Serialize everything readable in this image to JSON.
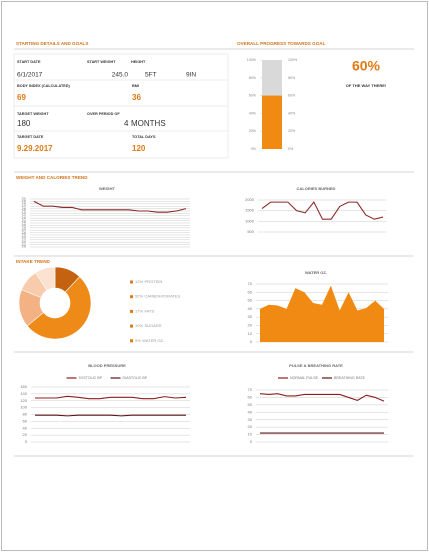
{
  "details": {
    "title": "STARTING DETAILS AND GOALS",
    "fields": [
      {
        "label": "START DATE",
        "value": "6/1/2017"
      },
      {
        "label": "START WEIGHT",
        "value": "245.0"
      },
      {
        "label": "HEIGHT",
        "value": [
          "5FT",
          "9IN"
        ]
      },
      {
        "label": "BODY INDEX (CALCULATED)",
        "value": "69"
      },
      {
        "label": "BMI",
        "value": "36"
      },
      {
        "label": "TARGET WEIGHT",
        "value": "180"
      },
      {
        "label": "OVER PERIOD OF",
        "value": [
          "4",
          "MONTHS"
        ]
      },
      {
        "label": "TARGET DATE",
        "value": "9.29.2017"
      },
      {
        "label": "TOTAL DAYS",
        "value": "120"
      }
    ]
  },
  "sections": [
    "WEIGHT AND CALORIES TREND",
    "INTAKE TREND"
  ],
  "chart_data": [
    {
      "type": "bar",
      "title": "OVERALL PROGRESS TOWARDS GOAL",
      "values": [
        60
      ],
      "value_labels": [
        "60%"
      ],
      "annotation": "OF THE WAY THERE!",
      "color": "#f08a12",
      "ylim": [
        0,
        100
      ],
      "yticks": [
        {
          "value": 0,
          "label": "0%"
        },
        {
          "value": 20,
          "label": "20%"
        },
        {
          "value": 40,
          "label": "40%"
        },
        {
          "value": 60,
          "label": "60%"
        },
        {
          "value": 80,
          "label": "80%"
        },
        {
          "value": 100,
          "label": "100%"
        }
      ]
    },
    {
      "type": "line",
      "title": "WEIGHT",
      "ylim": [
        230,
        250
      ],
      "yticks": [
        230,
        231,
        232,
        233,
        234,
        235,
        236,
        237,
        238,
        239,
        240,
        241,
        242,
        243,
        244,
        245,
        246,
        247,
        248,
        249,
        250
      ],
      "grid": true,
      "series": [
        {
          "name": null,
          "color": "#8b2a2a",
          "values": [
            249,
            247,
            247,
            246.5,
            246.5,
            245.5,
            245.5,
            245.5,
            245.5,
            245.5,
            245.5,
            245,
            245,
            244.5,
            244.5,
            245,
            246
          ]
        }
      ]
    },
    {
      "type": "line",
      "title": "CALORIES BURNED",
      "ylim": [
        500,
        2000
      ],
      "yticks": [
        500,
        1000,
        1500,
        2000
      ],
      "grid": true,
      "series": [
        {
          "name": null,
          "color": "#8b2a2a",
          "values": [
            1600,
            1900,
            1900,
            1900,
            1500,
            1400,
            1900,
            1100,
            1100,
            1700,
            1900,
            1900,
            1300,
            1100,
            1200
          ]
        }
      ]
    },
    {
      "type": "pie",
      "categories": [
        "PROTEIN",
        "CARBOHYDRATES",
        "FATS",
        "SUGARS",
        "WATER OZ."
      ],
      "values": [
        12,
        52,
        17,
        10,
        9
      ],
      "value_labels": [
        "12%",
        "52%",
        "17%",
        "10%",
        "9%"
      ],
      "colors": [
        "#c5620f",
        "#ee8a17",
        "#f4b183",
        "#f8cbad",
        "#fbe2d0"
      ]
    },
    {
      "type": "area",
      "title": "WATER OZ.",
      "ylim": [
        0,
        70
      ],
      "yticks": [
        0,
        10,
        20,
        30,
        40,
        50,
        60,
        70
      ],
      "grid": true,
      "series": [
        {
          "name": null,
          "color": "#f08a12",
          "values": [
            40,
            45,
            44,
            40,
            65,
            60,
            47,
            45,
            68,
            38,
            60,
            38,
            41,
            50,
            40
          ]
        }
      ]
    },
    {
      "type": "line",
      "title": "BLOOD PRESSURE",
      "ylim": [
        0,
        160
      ],
      "yticks": [
        0,
        20,
        40,
        60,
        80,
        100,
        120,
        140,
        160
      ],
      "grid": true,
      "series": [
        {
          "name": "SYSTOLIC BP",
          "color": "#8b1f1f",
          "values": [
            128,
            128,
            128,
            133,
            130,
            126,
            126,
            130,
            130,
            130,
            126,
            126,
            132,
            128,
            130
          ]
        },
        {
          "name": "DIASTOLIC BP",
          "color": "#5a1414",
          "values": [
            78,
            78,
            78,
            76,
            78,
            78,
            78,
            78,
            76,
            78,
            78,
            78,
            78,
            78,
            78
          ]
        }
      ]
    },
    {
      "type": "line",
      "title": "PULSE & BREATHING RATE",
      "ylim": [
        0,
        70
      ],
      "yticks": [
        0,
        10,
        20,
        30,
        40,
        50,
        60,
        70
      ],
      "grid": true,
      "series": [
        {
          "name": "NORMAL PULSE",
          "color": "#8b1f1f",
          "values": [
            65,
            64,
            65,
            62,
            62,
            64,
            64,
            64,
            64,
            64,
            60,
            56,
            63,
            60,
            55
          ]
        },
        {
          "name": "BREATHING RATE",
          "color": "#5a1414",
          "values": [
            12,
            12,
            12,
            12,
            12,
            12,
            12,
            12,
            12,
            12,
            12,
            12,
            12,
            12,
            12
          ]
        }
      ]
    }
  ]
}
